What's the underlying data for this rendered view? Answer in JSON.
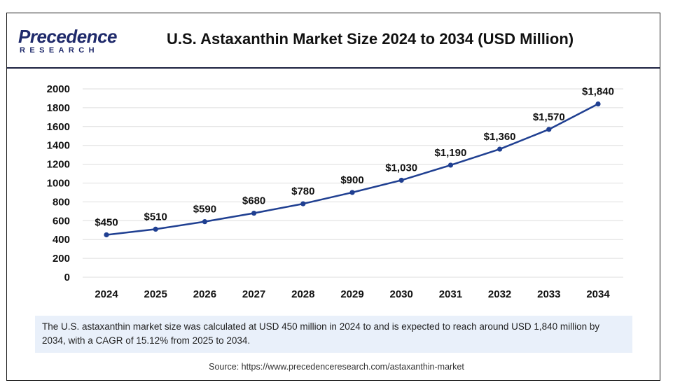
{
  "header": {
    "logo_word": "Precedence",
    "logo_sub": "RESEARCH",
    "title": "U.S. Astaxanthin Market Size 2024 to 2034 (USD Million)"
  },
  "chart_data": {
    "type": "line",
    "title": "U.S. Astaxanthin Market Size 2024 to 2034 (USD Million)",
    "xlabel": "",
    "ylabel": "",
    "categories": [
      "2024",
      "2025",
      "2026",
      "2027",
      "2028",
      "2029",
      "2030",
      "2031",
      "2032",
      "2033",
      "2034"
    ],
    "values": [
      450,
      510,
      590,
      680,
      780,
      900,
      1030,
      1190,
      1360,
      1570,
      1840
    ],
    "data_labels": [
      "$450",
      "$510",
      "$590",
      "$680",
      "$780",
      "$900",
      "$1,030",
      "$1,190",
      "$1,360",
      "$1,570",
      "$1,840"
    ],
    "ylim": [
      0,
      2000
    ],
    "yticks": [
      0,
      200,
      400,
      600,
      800,
      1000,
      1200,
      1400,
      1600,
      1800,
      2000
    ],
    "grid": true,
    "line_color": "#1f3f91",
    "grid_color": "#dddddd"
  },
  "note": "The U.S. astaxanthin market size was calculated at USD 450 million in 2024 to and is expected to reach around USD 1,840 million by 2034, with a CAGR of 15.12% from 2025 to 2034.",
  "source": "Source: https://www.precedenceresearch.com/astaxanthin-market"
}
